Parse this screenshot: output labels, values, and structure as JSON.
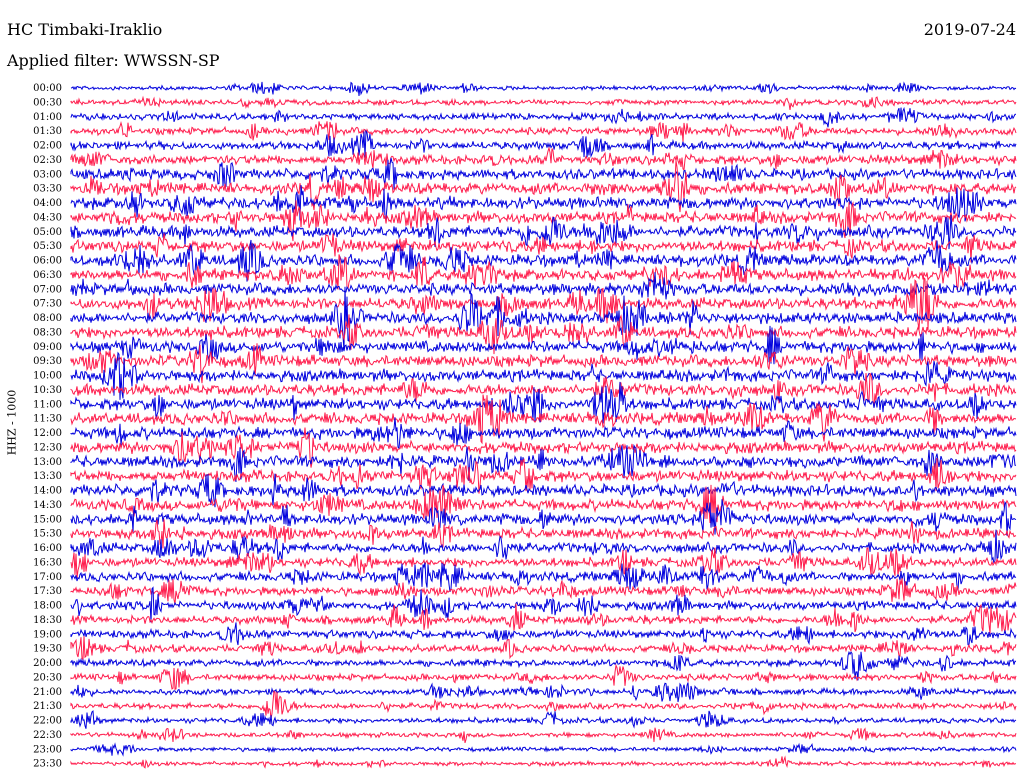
{
  "header": {
    "station": "HC Timbaki-Iraklio",
    "filter": "Applied filter: WWSSN-SP",
    "date": "2019-07-24"
  },
  "chart_data": {
    "type": "line",
    "title": "HC Timbaki-Iraklio",
    "subtitle": "Applied filter: WWSSN-SP",
    "date": "2019-07-24",
    "ylabel": "HHZ - 1000",
    "xlabel": "",
    "grid": false,
    "row_labels": [
      "00:00",
      "00:30",
      "01:00",
      "01:30",
      "02:00",
      "02:30",
      "03:00",
      "03:30",
      "04:00",
      "04:30",
      "05:00",
      "05:30",
      "06:00",
      "06:30",
      "07:00",
      "07:30",
      "08:00",
      "08:30",
      "09:00",
      "09:30",
      "10:00",
      "10:30",
      "11:00",
      "11:30",
      "12:00",
      "12:30",
      "13:00",
      "13:30",
      "14:00",
      "14:30",
      "15:00",
      "15:30",
      "16:00",
      "16:30",
      "17:00",
      "17:30",
      "18:00",
      "18:30",
      "19:00",
      "19:30",
      "20:00",
      "20:30",
      "21:00",
      "21:30",
      "22:00",
      "22:30",
      "23:00",
      "23:30"
    ],
    "series": [
      {
        "color": "#0000dd"
      },
      {
        "color": "#ff1c4c"
      }
    ],
    "row_amplitude": [
      0.35,
      0.45,
      0.55,
      0.6,
      0.7,
      0.8,
      0.9,
      1.0,
      1.0,
      1.0,
      1.0,
      1.0,
      1.0,
      1.0,
      1.0,
      1.0,
      1.0,
      1.0,
      1.0,
      1.0,
      1.0,
      1.0,
      1.0,
      1.0,
      1.0,
      1.0,
      1.0,
      1.0,
      1.0,
      0.95,
      0.95,
      0.9,
      0.85,
      0.8,
      0.8,
      0.75,
      0.75,
      0.7,
      0.7,
      0.65,
      0.6,
      0.55,
      0.5,
      0.5,
      0.45,
      0.4,
      0.35,
      0.35
    ]
  }
}
